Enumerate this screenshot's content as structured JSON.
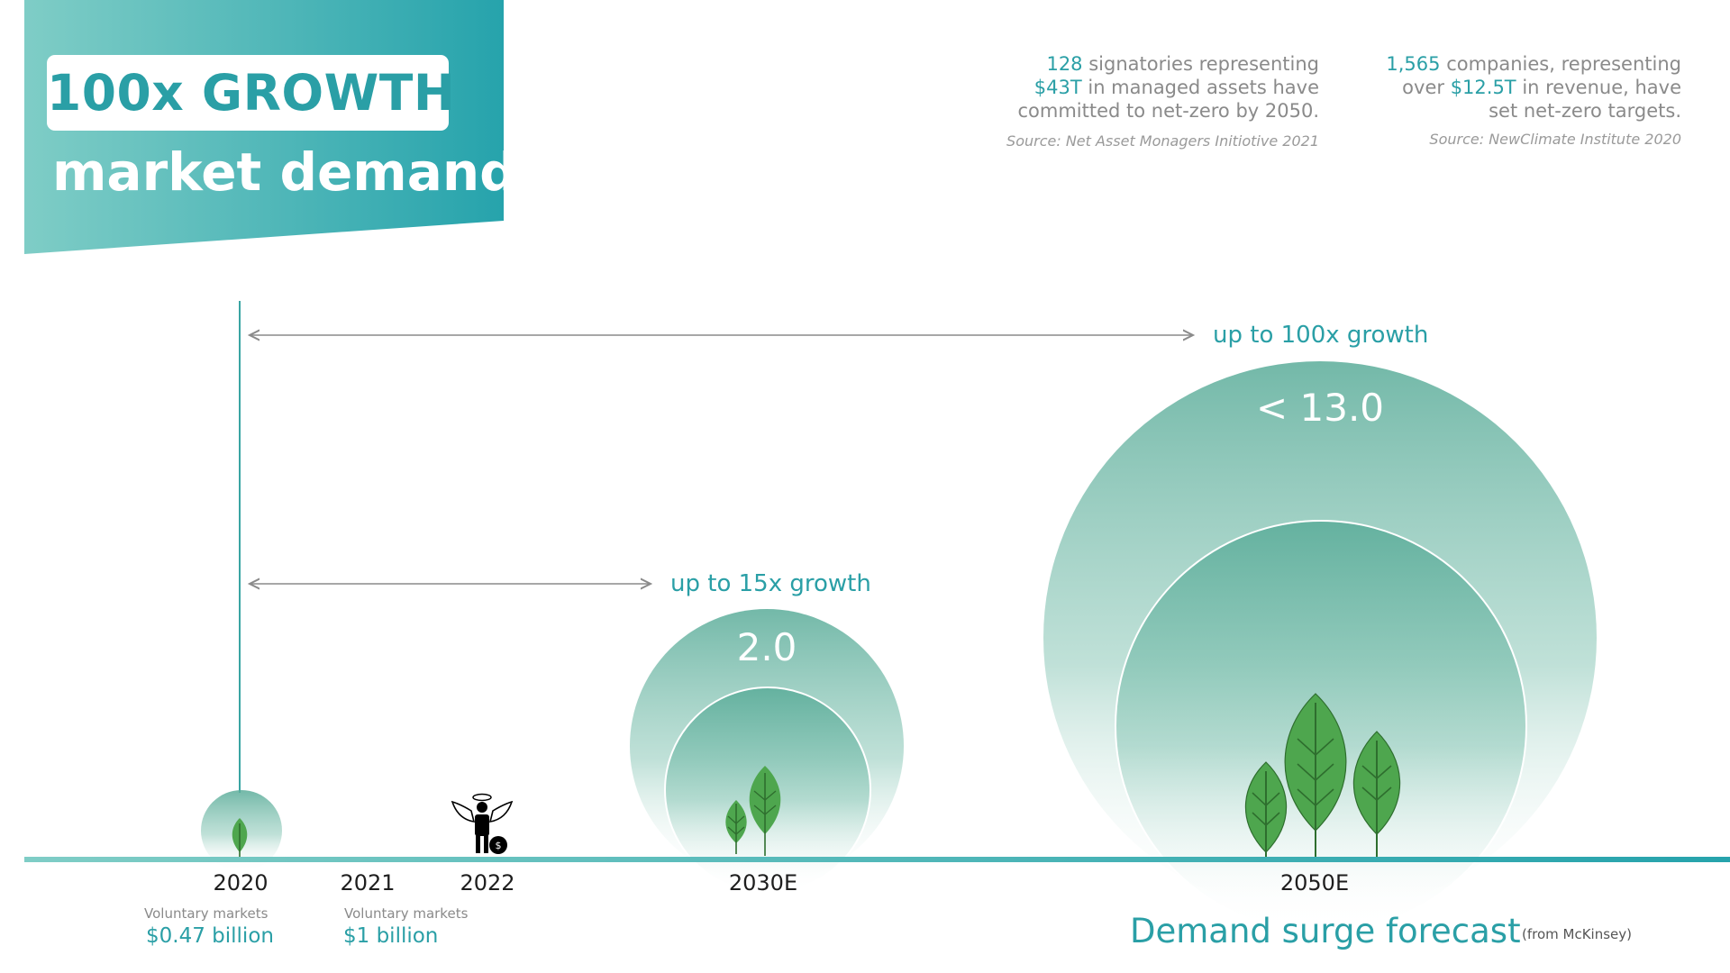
{
  "header": {
    "title_main": "100x GROWTH",
    "title_sub": "market demand"
  },
  "stats": [
    {
      "line1_hl": "128",
      "line1_rest": " signatories representing",
      "line2_hl": "$43T",
      "line2_rest": " in managed assets have",
      "line3": "committed to net-zero by 2050.",
      "source": "Source: Net Asset Monagers Initiotive 2021"
    },
    {
      "line1_hl": "1,565",
      "line1_rest": " companies, representing",
      "line2_pre": "over ",
      "line2_hl": "$12.5T",
      "line2_rest": " in revenue, have",
      "line3": "set net-zero targets.",
      "source": "Source: NewClimate Institute 2020"
    }
  ],
  "timeline": {
    "years": [
      "2020",
      "2021",
      "2022",
      "2030E",
      "2050E"
    ],
    "markets": [
      {
        "label": "Voluntary markets",
        "value": "$0.47 billion"
      },
      {
        "label": "Voluntary markets",
        "value": "$1 billion"
      }
    ],
    "growth": [
      {
        "label": "up to 15x growth"
      },
      {
        "label": "up to 100x growth"
      }
    ],
    "circle_values": [
      "2.0",
      "< 13.0"
    ]
  },
  "footer": {
    "title": "Demand surge forecast",
    "note": "(from McKinsey)"
  },
  "colors": {
    "accent": "#2a9fa6",
    "banner_light": "#7fcdc6",
    "circle": "#5aac99",
    "leaf": "#4ea64e"
  }
}
